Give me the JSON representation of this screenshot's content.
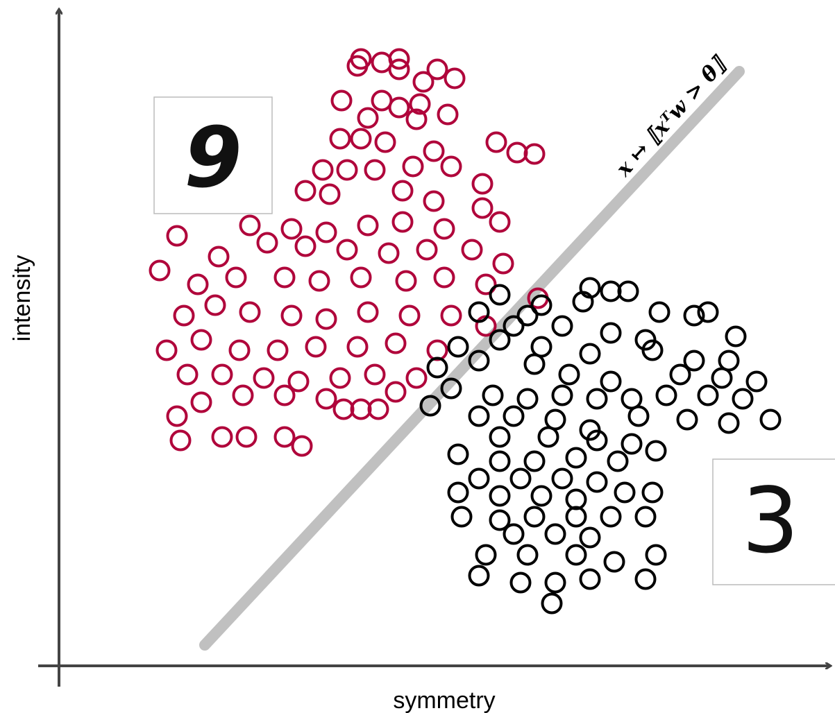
{
  "chart_data": {
    "type": "scatter",
    "x_label": "symmetry",
    "y_label": "intensity",
    "annotation": "x ↦ ⟦xᵀw > θ⟧",
    "insets": [
      {
        "label": "9"
      },
      {
        "label": "3"
      }
    ],
    "xlim": [
      0,
      111
    ],
    "ylim": [
      0,
      95
    ],
    "boundary": {
      "color": "#c0c0c0",
      "x": [
        21,
        98
      ],
      "y": [
        3,
        85.7
      ]
    },
    "series": [
      {
        "color": "#b0053b",
        "x": [
          43.5,
          46.5,
          49,
          43,
          49,
          54.5,
          57,
          52.5,
          40.7,
          46.5,
          49,
          52,
          56,
          51.5,
          44.5,
          40.5,
          43.5,
          47,
          63,
          66,
          68.5,
          54,
          38,
          41.5,
          45.5,
          51,
          56.5,
          61,
          35.5,
          39,
          49.5,
          54,
          61,
          63.5,
          27.5,
          33.5,
          38.5,
          44.5,
          49.5,
          55.5,
          17,
          23,
          30,
          35.5,
          41.5,
          47.5,
          53,
          59.5,
          64,
          14.5,
          20,
          25.5,
          32.5,
          37.5,
          43.5,
          50,
          55.5,
          61.5,
          69,
          18,
          22.5,
          27.5,
          33.5,
          38.5,
          44.5,
          50.5,
          56.5,
          61.5,
          15.5,
          20.5,
          26,
          31.5,
          37,
          43,
          48.5,
          54.5,
          18.5,
          23.5,
          29.5,
          34.5,
          40.5,
          45.5,
          51.5,
          17,
          20.5,
          26.5,
          32.5,
          38.5,
          43.5,
          48.5,
          17.5,
          23.5,
          27,
          32.5,
          35,
          41,
          46
        ],
        "values": [
          87.5,
          87,
          87.5,
          86.5,
          86,
          86,
          84.7,
          84.2,
          81.5,
          81.5,
          80.5,
          81,
          79.5,
          78.8,
          79,
          76,
          76,
          75.5,
          75.5,
          74,
          73.8,
          74.2,
          71.5,
          71.5,
          71.5,
          72,
          72,
          69.5,
          68.5,
          68,
          68.5,
          67,
          66,
          64,
          63.5,
          63,
          62.5,
          63.5,
          64,
          63,
          62,
          59,
          61,
          60.5,
          60,
          59.5,
          60,
          60,
          58,
          57,
          55,
          56,
          56,
          55.5,
          56,
          55.5,
          56,
          55,
          53,
          50.5,
          52,
          51,
          50.5,
          50,
          51,
          50.5,
          50.5,
          49,
          45.5,
          47,
          45.5,
          45.5,
          46,
          46,
          46.5,
          45.5,
          42,
          42,
          41.5,
          41,
          41.5,
          42,
          41.5,
          36,
          38,
          39,
          39,
          38.5,
          37,
          39.5,
          32.5,
          33,
          33,
          33,
          31.7,
          37,
          37
        ]
      },
      {
        "color": "#000000",
        "x": [
          76.5,
          79.5,
          82,
          63.5,
          75.5,
          69.5,
          60.5,
          67.5,
          86.5,
          91.5,
          93.5,
          65.5,
          72.5,
          79.5,
          84.5,
          97.5,
          57.5,
          63.5,
          69.5,
          76.5,
          85.5,
          91.5,
          96.5,
          54.5,
          60.5,
          68.5,
          73.5,
          79.5,
          89.5,
          95.5,
          100.5,
          56.5,
          62.5,
          67.5,
          72.5,
          77.5,
          82.5,
          87.5,
          93.5,
          98.5,
          53.5,
          60.5,
          65.5,
          71.5,
          76.5,
          83.5,
          90.5,
          96.5,
          102.5,
          63.5,
          70.5,
          77.5,
          82.5,
          86,
          57.5,
          63.5,
          68.5,
          74.5,
          80.5,
          60.5,
          66.5,
          72.5,
          77.5,
          57.5,
          63.5,
          69.5,
          74.5,
          81.5,
          85.5,
          58,
          63.5,
          68.5,
          74.5,
          79.5,
          84.5,
          65.5,
          71.5,
          76.5,
          61.5,
          67.5,
          74.5,
          80,
          86,
          60.5,
          66.5,
          71.5,
          76.5,
          84.5,
          71
        ],
        "values": [
          54.5,
          54,
          54,
          53.5,
          52.5,
          52,
          51,
          50.5,
          51,
          50.5,
          51,
          49,
          49,
          48,
          47,
          47.5,
          46,
          47,
          46,
          45,
          45.5,
          44,
          44,
          43,
          44,
          43.5,
          42,
          41,
          42,
          41.5,
          41,
          40,
          39,
          38.5,
          39,
          38.5,
          38.5,
          39,
          39,
          38.5,
          37.5,
          36,
          36,
          35.5,
          34,
          36,
          35.5,
          35,
          35.5,
          33,
          33,
          32.5,
          32,
          31,
          30.5,
          29.5,
          29.5,
          30,
          29.5,
          27,
          27,
          27,
          26.5,
          25,
          24.5,
          24.5,
          24,
          25,
          25,
          21.5,
          21,
          21.5,
          21.5,
          21.5,
          21.5,
          19,
          19,
          18.5,
          16,
          16,
          16,
          15,
          16,
          13,
          12,
          12,
          12.5,
          12.5,
          9
        ]
      }
    ]
  }
}
